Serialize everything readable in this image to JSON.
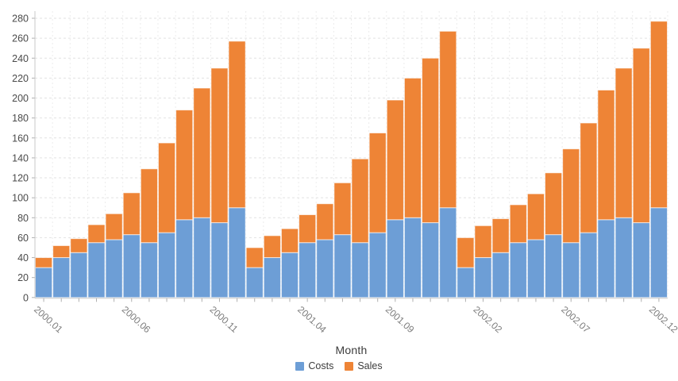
{
  "chart_data": {
    "type": "bar",
    "stacked": true,
    "title": "",
    "xlabel": "Month",
    "ylabel": "",
    "ylim": [
      0,
      280
    ],
    "ytick_step": 20,
    "x_tick_every": 5,
    "grid": true,
    "legend_position": "bottom",
    "categories": [
      "2000.01",
      "2000.02",
      "2000.03",
      "2000.04",
      "2000.05",
      "2000.06",
      "2000.07",
      "2000.08",
      "2000.09",
      "2000.10",
      "2000.11",
      "2000.12",
      "2001.01",
      "2001.02",
      "2001.03",
      "2001.04",
      "2001.05",
      "2001.06",
      "2001.07",
      "2001.08",
      "2001.09",
      "2001.10",
      "2001.11",
      "2001.12",
      "2002.01",
      "2002.02",
      "2002.03",
      "2002.04",
      "2002.05",
      "2002.06",
      "2002.07",
      "2002.08",
      "2002.09",
      "2002.10",
      "2002.11",
      "2002.12"
    ],
    "visible_x_tick_labels": [
      "2000.01",
      "2000.06",
      "2000.11",
      "2001.04",
      "2001.09",
      "2002.02",
      "2002.07",
      "2002.12"
    ],
    "series": [
      {
        "name": "Costs",
        "color": "#6d9ed6",
        "values": [
          30,
          40,
          45,
          55,
          58,
          63,
          55,
          65,
          78,
          80,
          75,
          90,
          30,
          40,
          45,
          55,
          58,
          63,
          55,
          65,
          78,
          80,
          75,
          90,
          30,
          40,
          45,
          55,
          58,
          63,
          55,
          65,
          78,
          80,
          75,
          90
        ]
      },
      {
        "name": "Sales",
        "color": "#ee8436",
        "values": [
          10,
          12,
          14,
          18,
          26,
          42,
          74,
          90,
          110,
          130,
          155,
          167,
          20,
          22,
          24,
          28,
          36,
          52,
          84,
          100,
          120,
          140,
          165,
          177,
          30,
          32,
          34,
          38,
          46,
          62,
          94,
          110,
          130,
          150,
          175,
          187
        ]
      }
    ]
  },
  "legend": {
    "items": [
      {
        "label": "Costs",
        "swatch": "costs-swatch"
      },
      {
        "label": "Sales",
        "swatch": "sales-swatch"
      }
    ]
  },
  "colors": {
    "costs": "#6d9ed6",
    "sales": "#ee8436",
    "grid_h": "#e2e2e2",
    "grid_v": "#ececec",
    "axis": "#c8c8c8",
    "tick": "#b0b0b0"
  }
}
